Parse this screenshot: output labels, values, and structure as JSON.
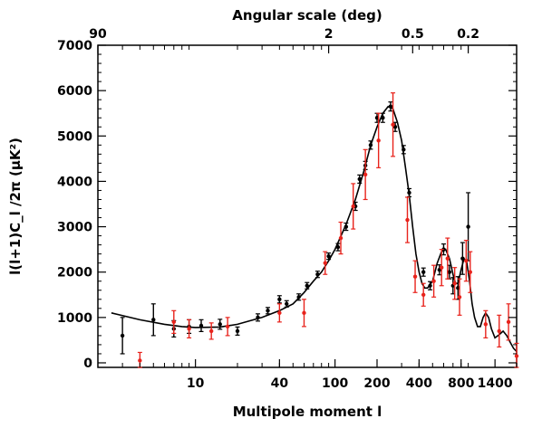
{
  "chart_data": {
    "type": "scatter",
    "xscale": "log",
    "xlim": [
      2,
      2000
    ],
    "ylim": [
      -100,
      7000
    ],
    "xlabel": "Multipole moment l",
    "ylabel": "l(l+1)C_l /2π (μK²)",
    "top_axis_label": "Angular scale (deg)",
    "x_ticks": [
      10,
      40,
      100,
      200,
      400,
      800,
      1400
    ],
    "x_tick_labels": [
      "10",
      "40",
      "100",
      "200",
      "400",
      "800",
      "1400"
    ],
    "y_ticks": [
      0,
      1000,
      2000,
      3000,
      4000,
      5000,
      6000,
      7000
    ],
    "y_tick_labels": [
      "0",
      "1000",
      "2000",
      "3000",
      "4000",
      "5000",
      "6000",
      "7000"
    ],
    "top_ticks": [
      {
        "label": "90",
        "l": 2
      },
      {
        "label": "2",
        "l": 90
      },
      {
        "label": "0.5",
        "l": 360
      },
      {
        "label": "0.2",
        "l": 900
      }
    ],
    "grid": false,
    "colors": {
      "axes": "#000000",
      "model": "#000000",
      "black_points": "#000000",
      "red_points": "#e8231c"
    },
    "series": [
      {
        "color": "#000000",
        "points": [
          {
            "x": 3,
            "y": 600,
            "err": 400
          },
          {
            "x": 5,
            "y": 950,
            "err": 350
          },
          {
            "x": 7,
            "y": 750,
            "err": 180
          },
          {
            "x": 9,
            "y": 800,
            "err": 150
          },
          {
            "x": 11,
            "y": 820,
            "err": 130
          },
          {
            "x": 15,
            "y": 850,
            "err": 110
          },
          {
            "x": 20,
            "y": 700,
            "err": 90
          },
          {
            "x": 28,
            "y": 1000,
            "err": 80
          },
          {
            "x": 33,
            "y": 1150,
            "err": 70
          },
          {
            "x": 40,
            "y": 1400,
            "err": 80
          },
          {
            "x": 45,
            "y": 1300,
            "err": 70
          },
          {
            "x": 55,
            "y": 1450,
            "err": 70
          },
          {
            "x": 63,
            "y": 1700,
            "err": 70
          },
          {
            "x": 75,
            "y": 1950,
            "err": 70
          },
          {
            "x": 90,
            "y": 2350,
            "err": 70
          },
          {
            "x": 105,
            "y": 2550,
            "err": 80
          },
          {
            "x": 120,
            "y": 3000,
            "err": 80
          },
          {
            "x": 140,
            "y": 3450,
            "err": 90
          },
          {
            "x": 150,
            "y": 4050,
            "err": 90
          },
          {
            "x": 165,
            "y": 4350,
            "err": 90
          },
          {
            "x": 180,
            "y": 4800,
            "err": 90
          },
          {
            "x": 200,
            "y": 5400,
            "err": 100
          },
          {
            "x": 220,
            "y": 5400,
            "err": 100
          },
          {
            "x": 250,
            "y": 5650,
            "err": 100
          },
          {
            "x": 270,
            "y": 5200,
            "err": 100
          },
          {
            "x": 310,
            "y": 4700,
            "err": 90
          },
          {
            "x": 340,
            "y": 3750,
            "err": 90
          },
          {
            "x": 430,
            "y": 2000,
            "err": 90
          },
          {
            "x": 480,
            "y": 1700,
            "err": 90
          },
          {
            "x": 560,
            "y": 2050,
            "err": 110
          },
          {
            "x": 600,
            "y": 2500,
            "err": 120
          },
          {
            "x": 660,
            "y": 2000,
            "err": 150
          },
          {
            "x": 700,
            "y": 1700,
            "err": 180
          },
          {
            "x": 760,
            "y": 1650,
            "err": 250
          },
          {
            "x": 820,
            "y": 2300,
            "err": 350
          },
          {
            "x": 900,
            "y": 3000,
            "err": 750
          }
        ]
      },
      {
        "color": "#e8231c",
        "points": [
          {
            "x": 4,
            "y": 50,
            "err": 180
          },
          {
            "x": 7,
            "y": 900,
            "err": 250
          },
          {
            "x": 9,
            "y": 750,
            "err": 200
          },
          {
            "x": 13,
            "y": 700,
            "err": 180
          },
          {
            "x": 17,
            "y": 800,
            "err": 200
          },
          {
            "x": 40,
            "y": 1100,
            "err": 200
          },
          {
            "x": 60,
            "y": 1100,
            "err": 300
          },
          {
            "x": 85,
            "y": 2200,
            "err": 250
          },
          {
            "x": 110,
            "y": 2750,
            "err": 350
          },
          {
            "x": 135,
            "y": 3450,
            "err": 500
          },
          {
            "x": 165,
            "y": 4150,
            "err": 550
          },
          {
            "x": 205,
            "y": 4900,
            "err": 600
          },
          {
            "x": 260,
            "y": 5250,
            "err": 700
          },
          {
            "x": 330,
            "y": 3150,
            "err": 500
          },
          {
            "x": 375,
            "y": 1900,
            "err": 350
          },
          {
            "x": 430,
            "y": 1500,
            "err": 250
          },
          {
            "x": 510,
            "y": 1800,
            "err": 350
          },
          {
            "x": 580,
            "y": 2100,
            "err": 400
          },
          {
            "x": 640,
            "y": 2300,
            "err": 450
          },
          {
            "x": 720,
            "y": 1750,
            "err": 350
          },
          {
            "x": 780,
            "y": 1450,
            "err": 400
          },
          {
            "x": 870,
            "y": 2250,
            "err": 450
          },
          {
            "x": 930,
            "y": 2000,
            "err": 450
          },
          {
            "x": 1200,
            "y": 850,
            "err": 300
          },
          {
            "x": 1500,
            "y": 700,
            "err": 350
          },
          {
            "x": 1750,
            "y": 900,
            "err": 400
          },
          {
            "x": 2000,
            "y": 150,
            "err": 280
          }
        ]
      }
    ],
    "model_curve": [
      [
        2.5,
        1100
      ],
      [
        4,
        950
      ],
      [
        6,
        850
      ],
      [
        8,
        800
      ],
      [
        10,
        780
      ],
      [
        15,
        790
      ],
      [
        20,
        850
      ],
      [
        30,
        1000
      ],
      [
        40,
        1150
      ],
      [
        50,
        1300
      ],
      [
        60,
        1550
      ],
      [
        70,
        1800
      ],
      [
        80,
        2000
      ],
      [
        90,
        2250
      ],
      [
        100,
        2500
      ],
      [
        120,
        3050
      ],
      [
        140,
        3600
      ],
      [
        160,
        4200
      ],
      [
        180,
        4800
      ],
      [
        200,
        5200
      ],
      [
        220,
        5500
      ],
      [
        240,
        5650
      ],
      [
        260,
        5600
      ],
      [
        280,
        5300
      ],
      [
        300,
        4900
      ],
      [
        320,
        4300
      ],
      [
        340,
        3700
      ],
      [
        360,
        3000
      ],
      [
        380,
        2400
      ],
      [
        400,
        2000
      ],
      [
        420,
        1750
      ],
      [
        440,
        1650
      ],
      [
        460,
        1650
      ],
      [
        500,
        1800
      ],
      [
        540,
        2200
      ],
      [
        580,
        2450
      ],
      [
        620,
        2500
      ],
      [
        660,
        2300
      ],
      [
        700,
        1950
      ],
      [
        730,
        1750
      ],
      [
        760,
        1750
      ],
      [
        800,
        2050
      ],
      [
        840,
        2300
      ],
      [
        880,
        2200
      ],
      [
        920,
        1800
      ],
      [
        960,
        1300
      ],
      [
        1000,
        1000
      ],
      [
        1050,
        800
      ],
      [
        1100,
        800
      ],
      [
        1150,
        1000
      ],
      [
        1200,
        1100
      ],
      [
        1260,
        1000
      ],
      [
        1320,
        750
      ],
      [
        1400,
        550
      ],
      [
        1500,
        620
      ],
      [
        1600,
        700
      ],
      [
        1700,
        600
      ],
      [
        1800,
        450
      ],
      [
        1900,
        320
      ],
      [
        2000,
        250
      ]
    ]
  }
}
